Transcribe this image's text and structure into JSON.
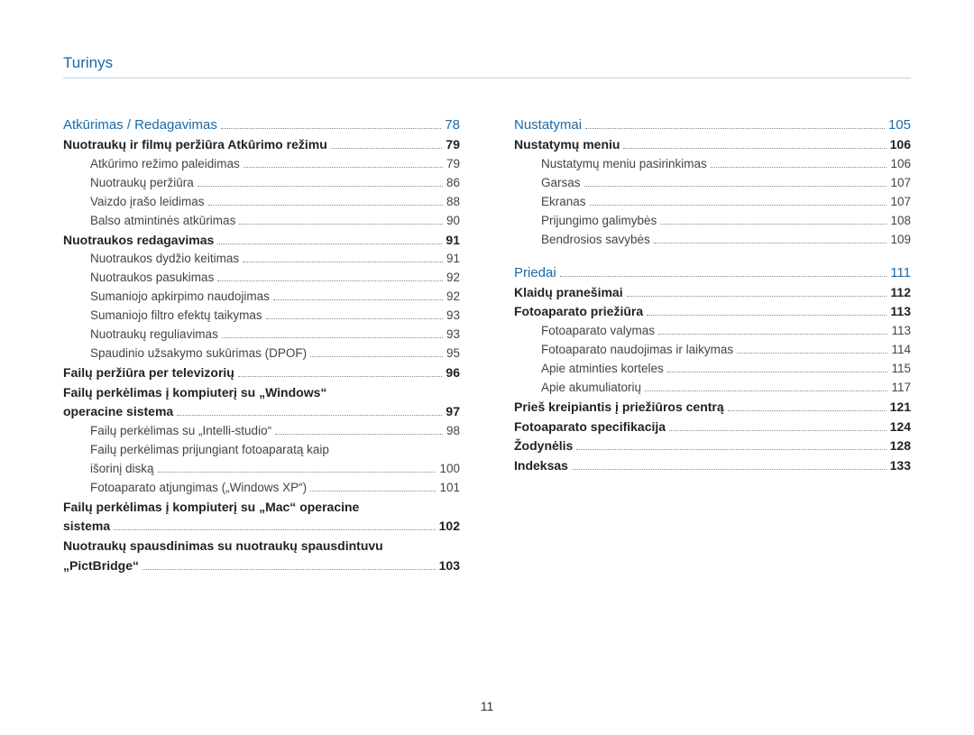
{
  "page": {
    "header": "Turinys",
    "number": "11",
    "colors": {
      "accent": "#1a6aa8",
      "rule": "#bcd2e6",
      "dot": "#888888",
      "text": "#333333"
    }
  },
  "left": [
    {
      "type": "section",
      "label": "Atkūrimas / Redagavimas",
      "page": "78"
    },
    {
      "type": "bold",
      "label": "Nuotraukų ir filmų peržiūra Atkūrimo režimu",
      "page": "79",
      "indent": 1
    },
    {
      "type": "plain",
      "label": "Atkūrimo režimo paleidimas",
      "page": "79",
      "indent": 2
    },
    {
      "type": "plain",
      "label": "Nuotraukų peržiūra",
      "page": "86",
      "indent": 2
    },
    {
      "type": "plain",
      "label": "Vaizdo įrašo leidimas",
      "page": "88",
      "indent": 2
    },
    {
      "type": "plain",
      "label": "Balso atmintinės atkūrimas",
      "page": "90",
      "indent": 2
    },
    {
      "type": "bold",
      "label": "Nuotraukos redagavimas",
      "page": "91",
      "indent": 1
    },
    {
      "type": "plain",
      "label": "Nuotraukos dydžio keitimas",
      "page": "91",
      "indent": 2
    },
    {
      "type": "plain",
      "label": "Nuotraukos pasukimas",
      "page": "92",
      "indent": 2
    },
    {
      "type": "plain",
      "label": "Sumaniojo apkirpimo naudojimas",
      "page": "92",
      "indent": 2
    },
    {
      "type": "plain",
      "label": "Sumaniojo filtro efektų taikymas",
      "page": "93",
      "indent": 2
    },
    {
      "type": "plain",
      "label": "Nuotraukų reguliavimas",
      "page": "93",
      "indent": 2
    },
    {
      "type": "plain",
      "label": "Spaudinio užsakymo sukūrimas (DPOF)",
      "page": "95",
      "indent": 2
    },
    {
      "type": "bold",
      "label": "Failų peržiūra per televizorių",
      "page": "96",
      "indent": 1
    },
    {
      "type": "bold",
      "label": "Failų perkėlimas į kompiuterį su „Windows“ operacine sistema",
      "page": "97",
      "indent": 1,
      "wrap": true
    },
    {
      "type": "plain",
      "label": "Failų perkėlimas su „Intelli-studio“",
      "page": "98",
      "indent": 2
    },
    {
      "type": "plain",
      "label": "Failų perkėlimas prijungiant fotoaparatą kaip išorinį diską",
      "page": "100",
      "indent": 2,
      "wrap": true
    },
    {
      "type": "plain",
      "label": "Fotoaparato atjungimas („Windows XP“)",
      "page": "101",
      "indent": 2
    },
    {
      "type": "bold",
      "label": "Failų perkėlimas į kompiuterį su „Mac“ operacine sistema",
      "page": "102",
      "indent": 1,
      "wrap": true
    },
    {
      "type": "bold",
      "label": "Nuotraukų spausdinimas su nuotraukų spausdintuvu „PictBridge“",
      "page": "103",
      "indent": 1,
      "wrap": true
    }
  ],
  "right": [
    {
      "type": "section",
      "label": "Nustatymai",
      "page": "105"
    },
    {
      "type": "bold",
      "label": "Nustatymų meniu",
      "page": "106",
      "indent": 1
    },
    {
      "type": "plain",
      "label": "Nustatymų meniu pasirinkimas",
      "page": "106",
      "indent": 2
    },
    {
      "type": "plain",
      "label": "Garsas",
      "page": "107",
      "indent": 2
    },
    {
      "type": "plain",
      "label": "Ekranas",
      "page": "107",
      "indent": 2
    },
    {
      "type": "plain",
      "label": "Prijungimo galimybės",
      "page": "108",
      "indent": 2
    },
    {
      "type": "plain",
      "label": "Bendrosios savybės",
      "page": "109",
      "indent": 2
    },
    {
      "type": "spacer"
    },
    {
      "type": "section",
      "label": "Priedai",
      "page": "111"
    },
    {
      "type": "bold",
      "label": "Klaidų pranešimai",
      "page": "112",
      "indent": 1
    },
    {
      "type": "bold",
      "label": "Fotoaparato priežiūra",
      "page": "113",
      "indent": 1
    },
    {
      "type": "plain",
      "label": "Fotoaparato valymas",
      "page": "113",
      "indent": 2
    },
    {
      "type": "plain",
      "label": "Fotoaparato naudojimas ir laikymas",
      "page": "114",
      "indent": 2
    },
    {
      "type": "plain",
      "label": "Apie atminties korteles",
      "page": "115",
      "indent": 2
    },
    {
      "type": "plain",
      "label": "Apie akumuliatorių",
      "page": "117",
      "indent": 2
    },
    {
      "type": "bold",
      "label": "Prieš kreipiantis į priežiūros centrą",
      "page": "121",
      "indent": 1
    },
    {
      "type": "bold",
      "label": "Fotoaparato specifikacija",
      "page": "124",
      "indent": 1
    },
    {
      "type": "bold",
      "label": "Žodynėlis",
      "page": "128",
      "indent": 1
    },
    {
      "type": "bold",
      "label": "Indeksas",
      "page": "133",
      "indent": 1
    }
  ]
}
